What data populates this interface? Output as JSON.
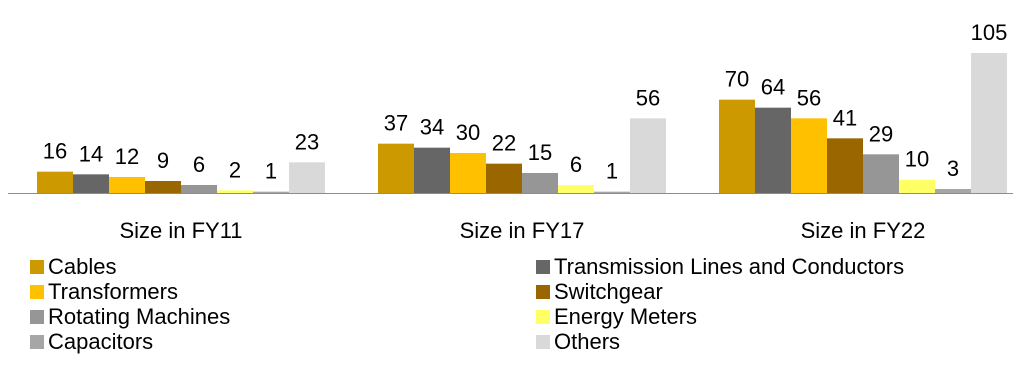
{
  "chart_data": {
    "type": "bar",
    "categories": [
      "Size in FY11",
      "Size in FY17",
      "Size in FY22"
    ],
    "series": [
      {
        "name": "Cables",
        "color": "#cc9900",
        "values": [
          16,
          37,
          70
        ]
      },
      {
        "name": "Transmission Lines and Conductors",
        "color": "#666666",
        "values": [
          14,
          34,
          64
        ]
      },
      {
        "name": "Transformers",
        "color": "#ffc000",
        "values": [
          12,
          30,
          56
        ]
      },
      {
        "name": "Switchgear",
        "color": "#996600",
        "values": [
          9,
          22,
          41
        ]
      },
      {
        "name": "Rotating Machines",
        "color": "#969696",
        "values": [
          6,
          15,
          29
        ]
      },
      {
        "name": "Energy Meters",
        "color": "#ffff66",
        "values": [
          2,
          6,
          10
        ]
      },
      {
        "name": "Capacitors",
        "color": "#a6a6a6",
        "values": [
          1,
          1,
          3
        ]
      },
      {
        "name": "Others",
        "color": "#d9d9d9",
        "values": [
          23,
          56,
          105
        ]
      }
    ],
    "ylim": [
      0,
      105
    ],
    "grid": false,
    "legend_position": "bottom"
  }
}
